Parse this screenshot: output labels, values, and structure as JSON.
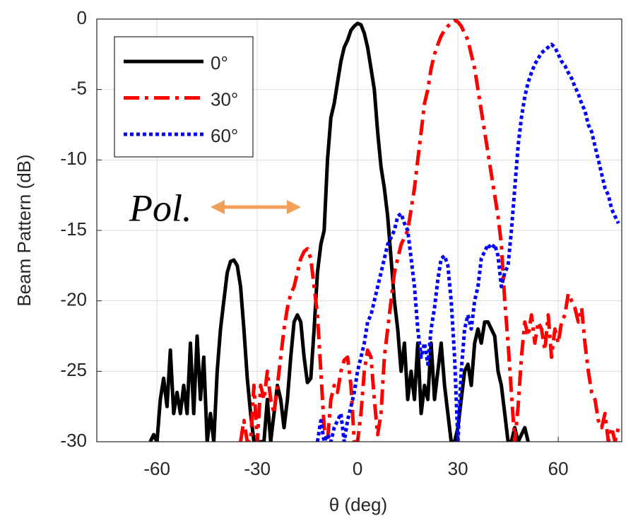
{
  "chart_data": {
    "type": "line",
    "xlabel": "θ (deg)",
    "ylabel": "Beam Pattern (dB)",
    "annotation": "Pol.",
    "xlim": [
      -78,
      79
    ],
    "xticks": [
      -60,
      -30,
      0,
      30,
      60
    ],
    "ylim": [
      -30,
      0
    ],
    "yticks": [
      -30,
      -25,
      -20,
      -15,
      -10,
      -5,
      0
    ],
    "grid": true,
    "legend": "upper left",
    "series": [
      {
        "name": "0°",
        "color": "#000000",
        "style": "solid",
        "x": [
          -62,
          -61,
          -60,
          -59,
          -58,
          -57,
          -56,
          -55,
          -54,
          -53,
          -52,
          -51,
          -50,
          -49,
          -48,
          -47,
          -46,
          -45,
          -44,
          -43,
          -42,
          -41,
          -40,
          -39,
          -38,
          -37,
          -36,
          -35,
          -34,
          -33,
          -32,
          -31,
          -28,
          -27,
          -26,
          -25,
          -24,
          -23,
          -22,
          -21,
          -20,
          -19,
          -18,
          -17,
          -16,
          -15,
          -14,
          -13,
          -12,
          -11,
          -10,
          -9,
          -8,
          -7,
          -6,
          -5,
          -4,
          -3,
          -2,
          -1,
          0,
          1,
          2,
          3,
          4,
          5,
          6,
          7,
          8,
          9,
          10,
          11,
          12,
          13,
          14,
          15,
          16,
          17,
          18,
          19,
          20,
          21,
          22,
          23,
          24,
          25,
          26,
          27,
          28,
          29,
          30,
          31,
          32,
          33,
          34,
          35,
          36,
          37,
          38,
          39,
          40,
          41,
          42,
          43,
          44,
          45,
          46,
          47,
          48,
          50,
          51
        ],
        "values": [
          -30,
          -29.5,
          -30,
          -27,
          -25.5,
          -27.5,
          -23.5,
          -28,
          -26.5,
          -28,
          -26,
          -28,
          -23,
          -28,
          -22.5,
          -27,
          -24,
          -30,
          -28,
          -30,
          -25,
          -22,
          -20,
          -18,
          -17.2,
          -17.1,
          -17.5,
          -19,
          -22,
          -25.5,
          -28,
          -30,
          -30,
          -27,
          -30,
          -28,
          -26,
          -27,
          -29,
          -27,
          -24,
          -21.5,
          -21,
          -21.5,
          -24,
          -25.8,
          -25.5,
          -22,
          -18,
          -16,
          -15,
          -10,
          -7,
          -6,
          -4.5,
          -3,
          -2,
          -1.5,
          -0.8,
          -0.5,
          -0.3,
          -0.4,
          -1,
          -2,
          -3.5,
          -5,
          -8,
          -10.5,
          -12,
          -14,
          -17,
          -20,
          -22,
          -25,
          -23,
          -27,
          -25,
          -27,
          -23,
          -28,
          -26,
          -27,
          -23,
          -27,
          -25,
          -23,
          -26,
          -28,
          -30,
          -30,
          -29,
          -27,
          -25,
          -24.5,
          -26,
          -23,
          -22,
          -23,
          -21.5,
          -21.5,
          -22,
          -22.5,
          -25,
          -26,
          -28,
          -30,
          -30,
          -29,
          -30,
          -29,
          -30
        ]
      },
      {
        "name": "30°",
        "color": "#ff0000",
        "style": "dashdot",
        "x": [
          -35,
          -34,
          -33,
          -32,
          -31,
          -30,
          -29,
          -28,
          -27,
          -26,
          -25,
          -24,
          -23,
          -22,
          -21,
          -20,
          -19,
          -18,
          -17,
          -16,
          -15,
          -14,
          -13,
          -12,
          -11,
          -10,
          -9,
          -8,
          -7,
          -6,
          -5,
          -4,
          -3,
          -2,
          -1,
          0,
          1,
          2,
          3,
          4,
          5,
          6,
          7,
          8,
          9,
          10,
          11,
          12,
          13,
          14,
          15,
          16,
          17,
          18,
          19,
          20,
          21,
          22,
          23,
          24,
          25,
          26,
          27,
          28,
          29,
          30,
          31,
          32,
          33,
          34,
          35,
          36,
          37,
          38,
          39,
          40,
          41,
          42,
          43,
          44,
          45,
          46,
          47,
          48,
          49,
          50,
          51,
          52,
          53,
          54,
          55,
          56,
          57,
          58,
          59,
          60,
          61,
          62,
          63,
          64,
          65,
          66,
          67,
          68,
          69,
          70,
          71,
          72,
          73,
          74,
          75,
          76,
          77,
          78
        ],
        "values": [
          -30,
          -28.5,
          -30,
          -30,
          -26,
          -30,
          -26,
          -27,
          -25,
          -27,
          -28,
          -26,
          -24,
          -22,
          -20.5,
          -19.5,
          -19,
          -18,
          -17,
          -16.5,
          -16.3,
          -17,
          -19,
          -21,
          -25,
          -29,
          -30,
          -27,
          -26,
          -26.5,
          -25,
          -24.2,
          -24,
          -26,
          -30,
          -30,
          -28,
          -25,
          -23.5,
          -24,
          -27,
          -29.5,
          -28,
          -24,
          -22,
          -20,
          -18,
          -17,
          -16,
          -15.5,
          -15,
          -13.5,
          -12,
          -10,
          -8,
          -6,
          -5,
          -3.5,
          -2.5,
          -1.8,
          -1.2,
          -0.8,
          -0.5,
          -0.3,
          -0.1,
          -0.2,
          -0.5,
          -1,
          -1.5,
          -2.5,
          -3.5,
          -5,
          -6.5,
          -8,
          -9.5,
          -11,
          -12.5,
          -14,
          -16,
          -20,
          -23,
          -26.5,
          -30,
          -27.5,
          -24,
          -21.5,
          -22.5,
          -21,
          -23,
          -21.5,
          -22,
          -23.5,
          -21,
          -24,
          -22,
          -23,
          -21.5,
          -21,
          -19.5,
          -20,
          -20.5,
          -21.5,
          -20.5,
          -23,
          -25,
          -26.5,
          -27,
          -28.5,
          -29,
          -28,
          -30,
          -29,
          -30,
          -29
        ]
      },
      {
        "name": "60°",
        "color": "#0000ff",
        "style": "dotted",
        "x": [
          -12,
          -11,
          -10,
          -9,
          -8,
          -7,
          -6,
          -5,
          -4,
          -3,
          -2,
          -1,
          0,
          1,
          2,
          3,
          4,
          5,
          6,
          7,
          8,
          9,
          10,
          11,
          12,
          13,
          14,
          15,
          16,
          17,
          18,
          19,
          20,
          21,
          22,
          23,
          24,
          25,
          26,
          27,
          28,
          29,
          30,
          31,
          32,
          33,
          34,
          35,
          36,
          37,
          38,
          39,
          40,
          41,
          42,
          43,
          44,
          45,
          46,
          47,
          48,
          49,
          50,
          51,
          52,
          53,
          54,
          55,
          56,
          57,
          58,
          59,
          60,
          61,
          62,
          63,
          64,
          65,
          66,
          67,
          68,
          69,
          70,
          71,
          72,
          73,
          74,
          75,
          76,
          77,
          78
        ],
        "values": [
          -30,
          -28.5,
          -30,
          -29.5,
          -30,
          -29,
          -28.5,
          -28,
          -30,
          -28.5,
          -27.5,
          -26.5,
          -25,
          -24,
          -23,
          -21.5,
          -21,
          -20,
          -19,
          -18,
          -17,
          -16,
          -15.5,
          -15,
          -14,
          -13.8,
          -14.5,
          -15,
          -17,
          -19,
          -22,
          -24,
          -23,
          -24.5,
          -22,
          -20.5,
          -18.5,
          -17,
          -16.8,
          -17.5,
          -20,
          -24,
          -30,
          -25,
          -22,
          -21,
          -22,
          -20,
          -19,
          -17,
          -16.5,
          -16,
          -16.3,
          -16,
          -16.8,
          -19,
          -18,
          -17.5,
          -15,
          -12,
          -9,
          -7,
          -5.5,
          -4.5,
          -3.8,
          -3.2,
          -2.8,
          -2.4,
          -2.2,
          -2,
          -1.8,
          -2,
          -2.5,
          -3,
          -3.3,
          -3.8,
          -4.2,
          -4.8,
          -5.3,
          -6,
          -6.5,
          -7.5,
          -8,
          -9,
          -10,
          -11,
          -12,
          -12.5,
          -13.5,
          -14,
          -14.5
        ]
      }
    ]
  }
}
